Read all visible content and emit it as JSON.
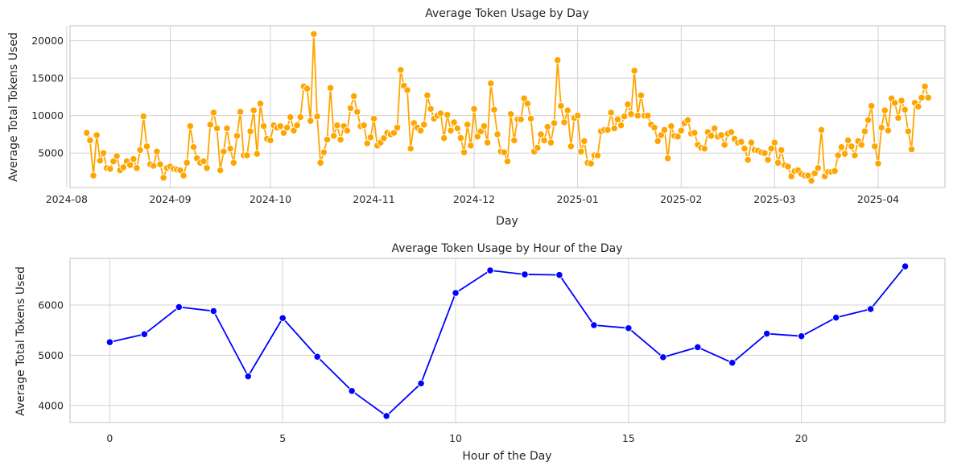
{
  "chart_data": [
    {
      "type": "line",
      "title": "Average Token Usage by Day",
      "xlabel": "Day",
      "ylabel": "Average Total Tokens Used",
      "color": "#FFA500",
      "grid": true,
      "x_start": "2024-08-07",
      "x_tick_labels": [
        "2024-08",
        "2024-09",
        "2024-10",
        "2024-11",
        "2024-12",
        "2025-01",
        "2025-02",
        "2025-03",
        "2025-04"
      ],
      "y_ticks": [
        5000,
        10000,
        15000,
        20000
      ],
      "y_tick_labels": [
        "5000",
        "10000",
        "15000",
        "20000"
      ],
      "ylim": [
        400,
        22000
      ],
      "values": [
        7700,
        6700,
        2000,
        7400,
        4000,
        5000,
        3000,
        2900,
        3900,
        4600,
        2700,
        3100,
        3900,
        3400,
        4200,
        3000,
        5400,
        9900,
        5900,
        3500,
        3300,
        5200,
        3500,
        1700,
        3000,
        3200,
        2900,
        2800,
        2700,
        2000,
        3700,
        8600,
        5800,
        4300,
        3700,
        3900,
        3000,
        8800,
        10400,
        8300,
        2700,
        5200,
        8300,
        5600,
        3700,
        7300,
        10500,
        4700,
        4700,
        7900,
        10700,
        4900,
        11600,
        8600,
        6900,
        6700,
        8700,
        8400,
        8600,
        7700,
        8400,
        9800,
        8000,
        8700,
        9800,
        13900,
        13600,
        9300,
        20900,
        9900,
        3700,
        5100,
        6800,
        13700,
        7300,
        8700,
        6800,
        8600,
        8000,
        11000,
        12600,
        10500,
        8600,
        8700,
        6300,
        7100,
        9600,
        6000,
        6400,
        7000,
        7700,
        7500,
        7700,
        8400,
        16100,
        14000,
        13400,
        5600,
        9000,
        8400,
        8000,
        8800,
        12700,
        10900,
        9600,
        10000,
        10300,
        7000,
        10100,
        8000,
        9100,
        8300,
        7000,
        5100,
        8800,
        6000,
        10900,
        7200,
        7900,
        8600,
        6400,
        14300,
        10800,
        7500,
        5200,
        5100,
        3900,
        10200,
        6700,
        9500,
        9500,
        12300,
        11600,
        9600,
        5200,
        5700,
        7500,
        6700,
        8500,
        6400,
        9000,
        17400,
        11300,
        9100,
        10700,
        5900,
        9700,
        10000,
        5200,
        6600,
        3700,
        3600,
        4700,
        4700,
        7900,
        8100,
        8100,
        10400,
        8300,
        9500,
        8700,
        9900,
        11500,
        10200,
        16000,
        10000,
        12700,
        10000,
        10000,
        8800,
        8400,
        6600,
        7400,
        8100,
        4300,
        8600,
        7300,
        7200,
        8000,
        9000,
        9400,
        7600,
        7700,
        6100,
        5700,
        5600,
        7800,
        7300,
        8300,
        7200,
        7400,
        6100,
        7600,
        7800,
        6900,
        6400,
        6500,
        5600,
        4100,
        6400,
        5400,
        5300,
        5100,
        5000,
        4100,
        5600,
        6400,
        3700,
        5400,
        3400,
        3200,
        1900,
        2600,
        2700,
        2200,
        2000,
        2000,
        1300,
        2300,
        3000,
        8100,
        1900,
        2500,
        2500,
        2600,
        4700,
        5800,
        4900,
        6700,
        5900,
        4700,
        6600,
        6100,
        7900,
        9400,
        11300,
        5900,
        3600,
        8400,
        10700,
        8000,
        12300,
        11700,
        9700,
        12000,
        10800,
        7900,
        5500,
        11700,
        11200,
        12400,
        13900,
        12400
      ]
    },
    {
      "type": "line",
      "title": "Average Token Usage by Hour of the Day",
      "xlabel": "Hour of the Day",
      "ylabel": "Average Total Tokens Used",
      "color": "#0000FF",
      "grid": true,
      "x": [
        0,
        1,
        2,
        3,
        4,
        5,
        6,
        7,
        8,
        9,
        10,
        11,
        12,
        13,
        14,
        15,
        16,
        17,
        18,
        19,
        20,
        21,
        22,
        23
      ],
      "values": [
        5260,
        5420,
        5960,
        5880,
        4580,
        5740,
        4970,
        4290,
        3790,
        4440,
        6240,
        6690,
        6610,
        6600,
        5600,
        5540,
        4960,
        5160,
        4850,
        5430,
        5380,
        5750,
        5920,
        6770
      ],
      "x_ticks": [
        0,
        5,
        10,
        15,
        20
      ],
      "x_tick_labels": [
        "0",
        "5",
        "10",
        "15",
        "20"
      ],
      "y_ticks": [
        4000,
        5000,
        6000
      ],
      "y_tick_labels": [
        "4000",
        "5000",
        "6000"
      ],
      "xlim": [
        -1.15,
        24.15
      ],
      "ylim": [
        3660,
        6930
      ]
    }
  ]
}
